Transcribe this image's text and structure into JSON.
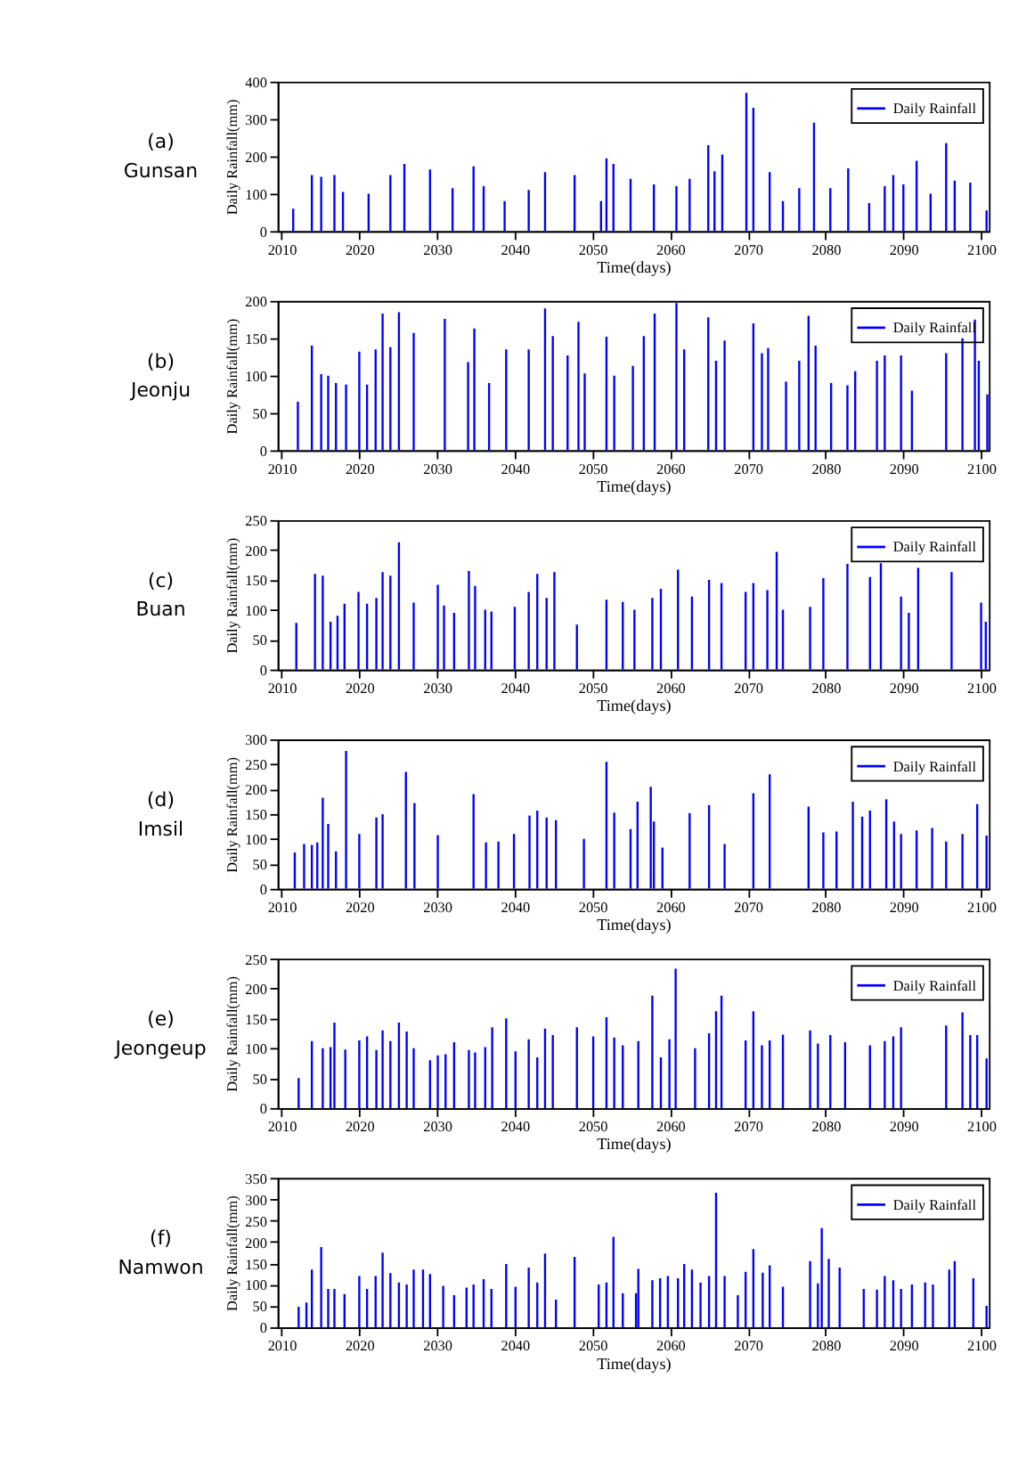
{
  "chart_data": [
    {
      "type": "bar",
      "annotations": [
        "(a)",
        "Gunsan"
      ],
      "xlabel": "Time(days)",
      "ylabel": "Daily Rainfall(mm)",
      "legend": "top right",
      "xlim": [
        2009.5,
        2101
      ],
      "xticks": [
        2010,
        2020,
        2030,
        2040,
        2050,
        2060,
        2070,
        2080,
        2090,
        2100
      ],
      "ylim": [
        0,
        400
      ],
      "yticks": [
        0,
        100,
        200,
        300,
        400
      ],
      "x": [
        2011.5,
        2013.9,
        2015.1,
        2016.8,
        2017.9,
        2021.2,
        2024.0,
        2025.8,
        2029.1,
        2032.0,
        2034.7,
        2036.0,
        2038.7,
        2041.8,
        2043.9,
        2047.7,
        2051.1,
        2051.8,
        2052.7,
        2054.9,
        2057.9,
        2060.8,
        2062.5,
        2064.9,
        2065.7,
        2066.7,
        2069.8,
        2070.7,
        2072.8,
        2074.5,
        2076.6,
        2078.5,
        2080.6,
        2082.9,
        2085.6,
        2087.6,
        2088.7,
        2090.0,
        2091.7,
        2093.5,
        2095.5,
        2096.6,
        2098.6,
        2100.7
      ],
      "series": [
        {
          "name": "Daily Rainfall",
          "color": "#0000ff",
          "values": [
            60,
            150,
            145,
            150,
            105,
            100,
            150,
            180,
            165,
            115,
            173,
            120,
            80,
            110,
            158,
            150,
            80,
            195,
            180,
            140,
            125,
            120,
            140,
            230,
            160,
            205,
            370,
            330,
            158,
            80,
            115,
            290,
            115,
            168,
            75,
            120,
            150,
            125,
            188,
            100,
            235,
            135,
            130,
            55
          ]
        }
      ]
    },
    {
      "type": "bar",
      "annotations": [
        "(b)",
        "Jeonju"
      ],
      "xlabel": "Time(days)",
      "ylabel": "Daily Rainfall(mm)",
      "legend": "top right",
      "xlim": [
        2009.5,
        2101
      ],
      "xticks": [
        2010,
        2020,
        2030,
        2040,
        2050,
        2060,
        2070,
        2080,
        2090,
        2100
      ],
      "ylim": [
        0,
        200
      ],
      "yticks": [
        0,
        50,
        100,
        150,
        200
      ],
      "x": [
        2012.1,
        2013.9,
        2015.1,
        2016.0,
        2017.0,
        2018.3,
        2020.0,
        2021.0,
        2022.1,
        2023.0,
        2024.0,
        2025.1,
        2027.0,
        2031.0,
        2034.0,
        2034.8,
        2036.7,
        2038.9,
        2041.8,
        2043.9,
        2044.9,
        2046.8,
        2048.2,
        2049.0,
        2051.8,
        2052.8,
        2055.2,
        2056.6,
        2058.0,
        2060.8,
        2061.8,
        2064.9,
        2065.9,
        2067.0,
        2070.7,
        2071.8,
        2072.6,
        2074.9,
        2076.6,
        2077.8,
        2078.7,
        2080.7,
        2082.8,
        2083.8,
        2086.6,
        2087.6,
        2089.7,
        2091.1,
        2095.5,
        2097.6,
        2099.2,
        2099.7,
        2100.8
      ],
      "series": [
        {
          "name": "Daily Rainfall",
          "color": "#0000ff",
          "values": [
            65,
            140,
            102,
            100,
            90,
            88,
            132,
            88,
            135,
            183,
            138,
            185,
            157,
            176,
            118,
            163,
            90,
            135,
            135,
            190,
            153,
            127,
            172,
            103,
            152,
            100,
            113,
            153,
            183,
            197,
            135,
            178,
            120,
            147,
            170,
            130,
            137,
            92,
            120,
            180,
            140,
            90,
            87,
            106,
            120,
            127,
            127,
            80,
            130,
            150,
            175,
            120,
            75
          ]
        }
      ]
    },
    {
      "type": "bar",
      "annotations": [
        "(c)",
        "Buan"
      ],
      "xlabel": "Time(days)",
      "ylabel": "Daily Rainfall(mm)",
      "legend": "top right",
      "xlim": [
        2009.5,
        2101
      ],
      "xticks": [
        2010,
        2020,
        2030,
        2040,
        2050,
        2060,
        2070,
        2080,
        2090,
        2100
      ],
      "ylim": [
        0,
        250
      ],
      "yticks": [
        0,
        50,
        100,
        150,
        200,
        250
      ],
      "x": [
        2011.9,
        2014.3,
        2015.3,
        2016.3,
        2017.2,
        2018.1,
        2019.9,
        2021.0,
        2022.2,
        2023.0,
        2024.0,
        2025.1,
        2027.0,
        2030.1,
        2030.9,
        2032.2,
        2034.1,
        2034.9,
        2036.2,
        2037.0,
        2040.0,
        2041.8,
        2042.9,
        2044.1,
        2045.1,
        2048.0,
        2051.8,
        2053.9,
        2055.4,
        2057.7,
        2058.8,
        2061.0,
        2062.8,
        2065.0,
        2066.6,
        2069.7,
        2070.7,
        2072.5,
        2073.7,
        2074.5,
        2078.0,
        2079.7,
        2082.8,
        2085.7,
        2087.1,
        2089.7,
        2090.7,
        2091.9,
        2096.2,
        2100.0,
        2100.6
      ],
      "series": [
        {
          "name": "Daily Rainfall",
          "color": "#0000ff",
          "values": [
            78,
            160,
            157,
            80,
            90,
            110,
            130,
            110,
            120,
            163,
            157,
            213,
            112,
            142,
            107,
            95,
            165,
            140,
            100,
            97,
            105,
            130,
            160,
            120,
            163,
            75,
            117,
            113,
            100,
            120,
            135,
            167,
            122,
            150,
            145,
            130,
            145,
            133,
            197,
            100,
            105,
            153,
            177,
            155,
            178,
            122,
            95,
            170,
            163,
            112,
            80
          ]
        }
      ]
    },
    {
      "type": "bar",
      "annotations": [
        "(d)",
        "Imsil"
      ],
      "xlabel": "Time(days)",
      "ylabel": "Daily Rainfall(mm)",
      "legend": "top right",
      "xlim": [
        2009.5,
        2101
      ],
      "xticks": [
        2010,
        2020,
        2030,
        2040,
        2050,
        2060,
        2070,
        2080,
        2090,
        2100
      ],
      "ylim": [
        0,
        300
      ],
      "yticks": [
        0,
        50,
        100,
        150,
        200,
        250,
        300
      ],
      "x": [
        2011.7,
        2012.9,
        2013.9,
        2014.6,
        2015.3,
        2016.0,
        2017.0,
        2018.3,
        2020.0,
        2022.2,
        2023.0,
        2026.0,
        2027.1,
        2030.1,
        2034.7,
        2036.3,
        2037.9,
        2039.9,
        2041.9,
        2042.9,
        2044.1,
        2045.3,
        2048.9,
        2051.8,
        2052.8,
        2054.9,
        2055.8,
        2057.5,
        2057.9,
        2059.0,
        2062.5,
        2065.0,
        2067.0,
        2070.7,
        2072.8,
        2077.8,
        2079.7,
        2081.4,
        2083.5,
        2084.7,
        2085.7,
        2087.8,
        2088.8,
        2089.7,
        2091.7,
        2093.7,
        2095.5,
        2097.6,
        2099.5,
        2100.7
      ],
      "series": [
        {
          "name": "Daily Rainfall",
          "color": "#0000ff",
          "values": [
            73,
            90,
            88,
            93,
            183,
            130,
            75,
            277,
            110,
            143,
            150,
            235,
            172,
            108,
            190,
            93,
            95,
            110,
            147,
            157,
            143,
            138,
            100,
            255,
            153,
            120,
            175,
            205,
            135,
            83,
            152,
            168,
            90,
            192,
            230,
            165,
            113,
            115,
            175,
            145,
            157,
            180,
            135,
            110,
            117,
            122,
            95,
            110,
            170,
            107
          ]
        }
      ]
    },
    {
      "type": "bar",
      "annotations": [
        "(e)",
        "Jeongeup"
      ],
      "xlabel": "Time(days)",
      "ylabel": "Daily Rainfall(mm)",
      "legend": "top right",
      "xlim": [
        2009.5,
        2101
      ],
      "xticks": [
        2010,
        2020,
        2030,
        2040,
        2050,
        2060,
        2070,
        2080,
        2090,
        2100
      ],
      "ylim": [
        0,
        250
      ],
      "yticks": [
        0,
        50,
        100,
        150,
        200,
        250
      ],
      "x": [
        2012.2,
        2013.9,
        2015.3,
        2016.3,
        2016.8,
        2018.2,
        2020.0,
        2021.0,
        2022.2,
        2023.0,
        2024.0,
        2025.1,
        2026.1,
        2027.0,
        2029.1,
        2030.1,
        2031.1,
        2032.2,
        2034.1,
        2034.9,
        2036.2,
        2037.1,
        2038.9,
        2040.1,
        2041.8,
        2042.9,
        2043.9,
        2044.9,
        2048.0,
        2050.1,
        2051.8,
        2052.8,
        2053.9,
        2055.9,
        2057.7,
        2058.8,
        2059.9,
        2060.7,
        2063.2,
        2065.0,
        2065.9,
        2066.6,
        2069.7,
        2070.7,
        2071.8,
        2072.8,
        2074.5,
        2078.0,
        2079.0,
        2080.6,
        2082.5,
        2085.7,
        2087.6,
        2088.7,
        2089.7,
        2095.5,
        2097.6,
        2098.6,
        2099.5,
        2100.7
      ],
      "series": [
        {
          "name": "Daily Rainfall",
          "color": "#0000ff",
          "values": [
            50,
            112,
            100,
            102,
            143,
            98,
            113,
            120,
            97,
            130,
            112,
            143,
            128,
            100,
            80,
            88,
            90,
            110,
            97,
            93,
            102,
            135,
            150,
            95,
            115,
            85,
            133,
            122,
            135,
            120,
            152,
            118,
            105,
            112,
            188,
            85,
            115,
            233,
            100,
            125,
            162,
            188,
            113,
            162,
            105,
            113,
            123,
            130,
            108,
            122,
            110,
            105,
            112,
            120,
            135,
            138,
            160,
            122,
            122,
            83
          ]
        }
      ]
    },
    {
      "type": "bar",
      "annotations": [
        "(f)",
        "Namwon"
      ],
      "xlabel": "Time(days)",
      "ylabel": "Daily Rainfall(mm)",
      "legend": "top right",
      "xlim": [
        2009.5,
        2101
      ],
      "xticks": [
        2010,
        2020,
        2030,
        2040,
        2050,
        2060,
        2070,
        2080,
        2090,
        2100
      ],
      "ylim": [
        0,
        350
      ],
      "yticks": [
        0,
        50,
        100,
        150,
        200,
        250,
        300,
        350
      ],
      "x": [
        2012.2,
        2013.2,
        2013.9,
        2015.1,
        2016.0,
        2016.8,
        2018.1,
        2020.0,
        2021.0,
        2022.1,
        2023.0,
        2024.0,
        2025.1,
        2026.1,
        2027.0,
        2028.2,
        2029.1,
        2030.8,
        2032.2,
        2033.8,
        2034.7,
        2036.0,
        2037.0,
        2038.9,
        2040.1,
        2041.8,
        2042.9,
        2043.9,
        2045.3,
        2047.7,
        2050.8,
        2051.8,
        2052.7,
        2053.9,
        2055.6,
        2055.9,
        2057.7,
        2058.7,
        2059.7,
        2061.0,
        2061.8,
        2062.8,
        2063.9,
        2065.0,
        2065.9,
        2067.0,
        2068.7,
        2069.7,
        2070.7,
        2071.9,
        2072.8,
        2074.5,
        2078.0,
        2079.0,
        2079.5,
        2080.4,
        2081.8,
        2084.9,
        2086.6,
        2087.6,
        2088.7,
        2089.7,
        2091.1,
        2092.8,
        2093.8,
        2095.9,
        2096.6,
        2099.0,
        2100.7
      ],
      "series": [
        {
          "name": "Daily Rainfall",
          "color": "#0000ff",
          "values": [
            48,
            58,
            135,
            188,
            90,
            90,
            78,
            120,
            90,
            120,
            175,
            127,
            105,
            100,
            135,
            135,
            125,
            97,
            75,
            93,
            100,
            113,
            90,
            148,
            95,
            140,
            105,
            173,
            65,
            165,
            100,
            105,
            212,
            80,
            80,
            137,
            110,
            115,
            120,
            115,
            148,
            135,
            105,
            120,
            315,
            120,
            75,
            130,
            183,
            128,
            145,
            95,
            155,
            103,
            232,
            160,
            140,
            90,
            88,
            120,
            110,
            90,
            100,
            105,
            100,
            135,
            155,
            115,
            50
          ]
        }
      ]
    }
  ]
}
